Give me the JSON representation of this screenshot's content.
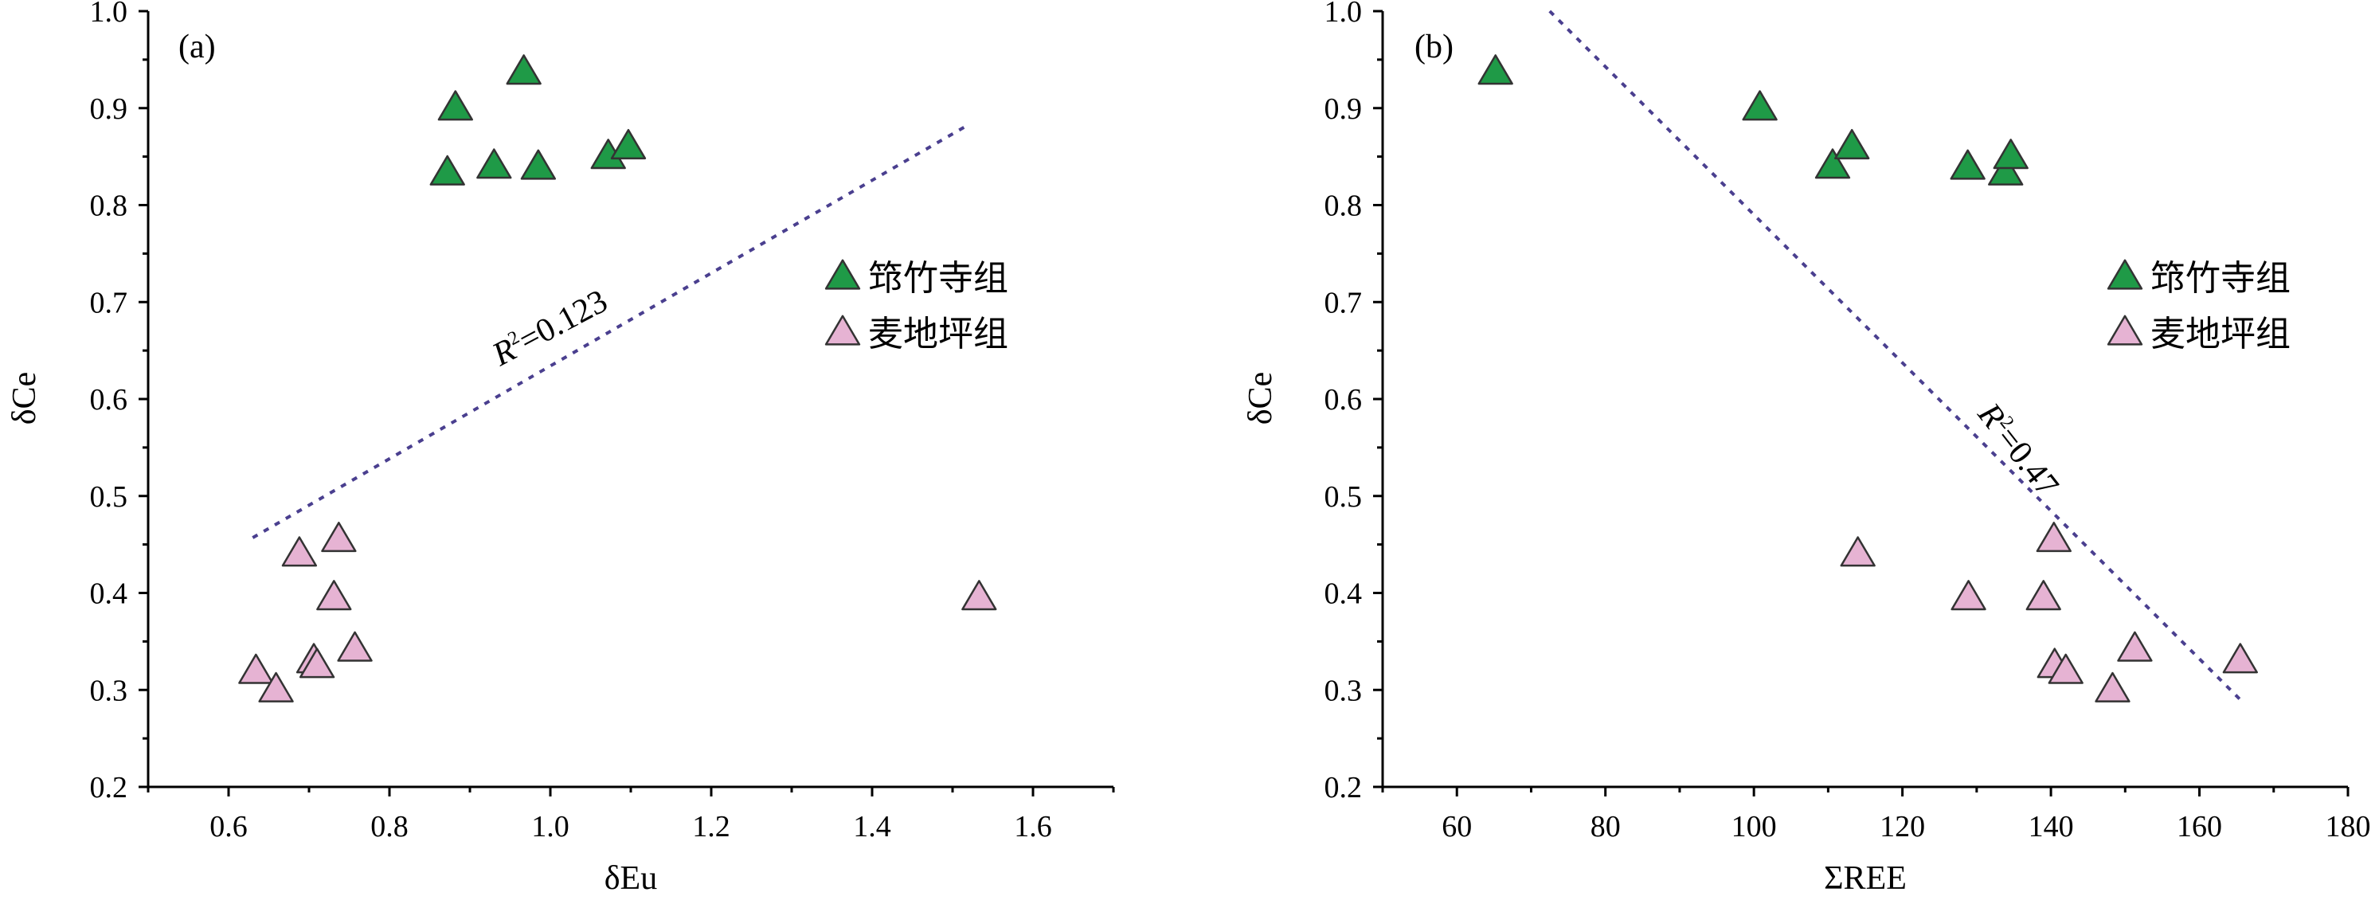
{
  "colors": {
    "series_zhuzhusi": "#1f9a47",
    "series_maidiping": "#e6b3d3",
    "marker_edge": "#333333",
    "fit_line": "#4a3f8f"
  },
  "chart_data": [
    {
      "type": "scatter",
      "panel": "(a)",
      "xlabel": "δEu",
      "ylabel": "δCe",
      "xlim": [
        0.5,
        1.7
      ],
      "ylim": [
        0.2,
        1.0
      ],
      "xticks": [
        "0.6",
        "0.8",
        "1.0",
        "1.2",
        "1.4",
        "1.6"
      ],
      "yticks": [
        "0.2",
        "0.3",
        "0.4",
        "0.5",
        "0.6",
        "0.7",
        "0.8",
        "0.9",
        "1.0"
      ],
      "legend_position": "right-middle",
      "series": [
        {
          "name": "筇竹寺组",
          "marker": "triangle",
          "points": [
            [
              0.872,
              0.833
            ],
            [
              0.882,
              0.9
            ],
            [
              0.93,
              0.84
            ],
            [
              0.967,
              0.937
            ],
            [
              0.985,
              0.839
            ],
            [
              1.072,
              0.85
            ],
            [
              1.097,
              0.86
            ]
          ]
        },
        {
          "name": "麦地坪组",
          "marker": "triangle",
          "points": [
            [
              0.634,
              0.319
            ],
            [
              0.659,
              0.3
            ],
            [
              0.688,
              0.44
            ],
            [
              0.706,
              0.33
            ],
            [
              0.71,
              0.325
            ],
            [
              0.731,
              0.395
            ],
            [
              0.737,
              0.455
            ],
            [
              0.757,
              0.342
            ],
            [
              1.533,
              0.395
            ]
          ]
        }
      ],
      "fit": {
        "r2_label": "=0.123",
        "x": [
          0.63,
          1.52
        ],
        "y": [
          0.457,
          0.883
        ]
      }
    },
    {
      "type": "scatter",
      "panel": "(b)",
      "xlabel": "ΣREE",
      "ylabel": "δCe",
      "xlim": [
        50,
        180
      ],
      "ylim": [
        0.2,
        1.0
      ],
      "xticks": [
        "60",
        "80",
        "100",
        "120",
        "140",
        "160",
        "180"
      ],
      "yticks": [
        "0.2",
        "0.3",
        "0.4",
        "0.5",
        "0.6",
        "0.7",
        "0.8",
        "0.9",
        "1.0"
      ],
      "legend_position": "right-middle",
      "series": [
        {
          "name": "筇竹寺组",
          "marker": "triangle",
          "points": [
            [
              65.2,
              0.937
            ],
            [
              100.8,
              0.9
            ],
            [
              110.6,
              0.84
            ],
            [
              113.2,
              0.86
            ],
            [
              128.8,
              0.839
            ],
            [
              133.9,
              0.833
            ],
            [
              134.6,
              0.85
            ]
          ]
        },
        {
          "name": "麦地坪组",
          "marker": "triangle",
          "points": [
            [
              114.0,
              0.44
            ],
            [
              128.9,
              0.395
            ],
            [
              139.0,
              0.395
            ],
            [
              140.4,
              0.455
            ],
            [
              140.5,
              0.325
            ],
            [
              142.0,
              0.319
            ],
            [
              148.3,
              0.3
            ],
            [
              151.3,
              0.342
            ],
            [
              165.5,
              0.33
            ]
          ]
        }
      ],
      "fit": {
        "r2_label": "=0.47",
        "x": [
          72.5,
          165.5
        ],
        "y": [
          1.0,
          0.29
        ]
      }
    }
  ]
}
